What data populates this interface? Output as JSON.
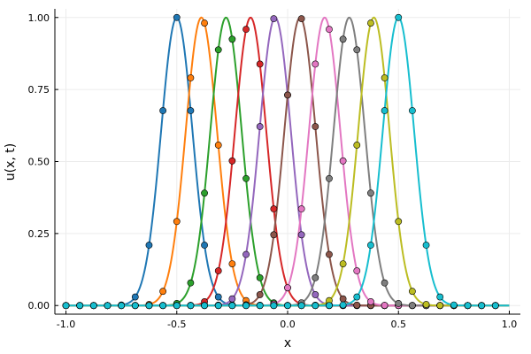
{
  "chart_data": {
    "type": "line",
    "title": "",
    "xlabel": "x",
    "ylabel": "u(x, t)",
    "xlim": [
      -1.05,
      1.05
    ],
    "ylim": [
      -0.03,
      1.03
    ],
    "xticks": [
      -1.0,
      -0.5,
      0.0,
      0.5,
      1.0
    ],
    "xtick_labels": [
      "-1.0",
      "-0.5",
      "0.0",
      "0.5",
      "1.0"
    ],
    "yticks": [
      0.0,
      0.25,
      0.5,
      0.75,
      1.0
    ],
    "ytick_labels": [
      "0.00",
      "0.25",
      "0.50",
      "0.75",
      "1.00"
    ],
    "grid": true,
    "legend": "none",
    "curve_x_range": [
      -1.0,
      1.0
    ],
    "curve_width": 0.1,
    "sample_x": [
      -1.0,
      -0.9375,
      -0.875,
      -0.8125,
      -0.75,
      -0.6875,
      -0.625,
      -0.5625,
      -0.5,
      -0.4375,
      -0.375,
      -0.3125,
      -0.25,
      -0.1875,
      -0.125,
      -0.0625,
      0.0,
      0.0625,
      0.125,
      0.1875,
      0.25,
      0.3125,
      0.375,
      0.4375,
      0.5,
      0.5625,
      0.625,
      0.6875,
      0.75,
      0.8125,
      0.875,
      0.9375
    ],
    "series": [
      {
        "center": -0.5,
        "color": "#1f77b4"
      },
      {
        "center": -0.389,
        "color": "#ff7f0e"
      },
      {
        "center": -0.278,
        "color": "#2ca02c"
      },
      {
        "center": -0.167,
        "color": "#d62728"
      },
      {
        "center": -0.056,
        "color": "#9467bd"
      },
      {
        "center": 0.056,
        "color": "#8c564b"
      },
      {
        "center": 0.167,
        "color": "#e377c2"
      },
      {
        "center": 0.278,
        "color": "#7f7f7f"
      },
      {
        "center": 0.389,
        "color": "#bcbd22"
      },
      {
        "center": 0.5,
        "color": "#17becf"
      }
    ]
  }
}
